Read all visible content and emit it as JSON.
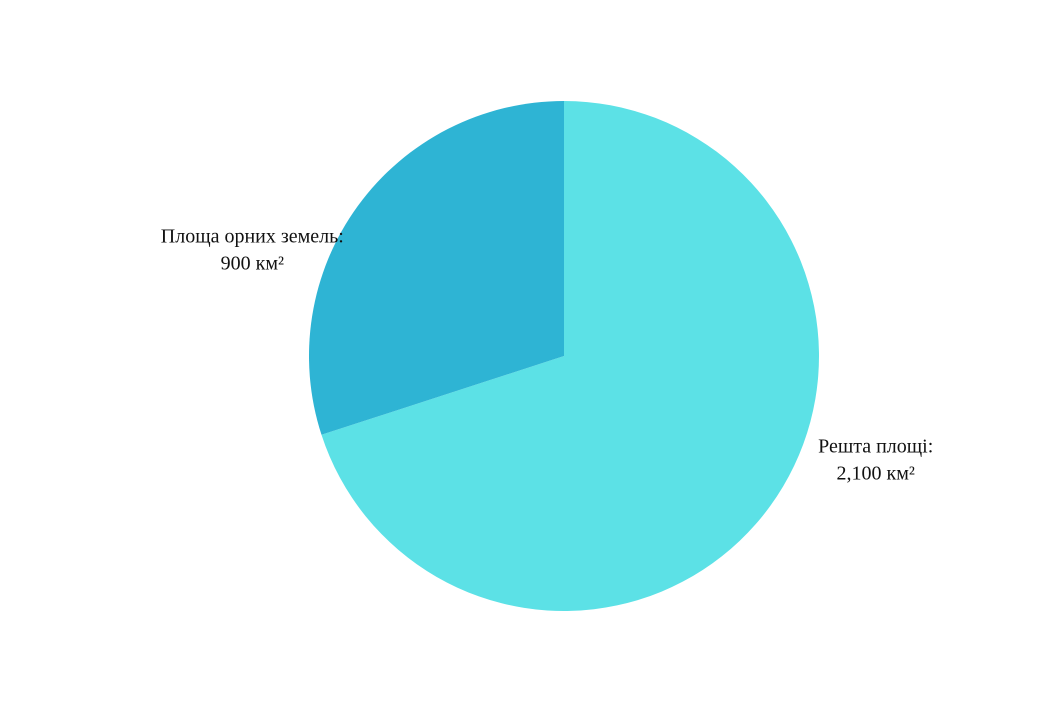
{
  "chart_data": {
    "type": "pie",
    "categories": [
      "Решта площі:",
      "Площа орних земель:"
    ],
    "values": [
      2100,
      900
    ],
    "value_labels": [
      "2,100 км²",
      "900 км²"
    ],
    "colors": [
      "#5ce1e6",
      "#2eb4d4"
    ]
  }
}
